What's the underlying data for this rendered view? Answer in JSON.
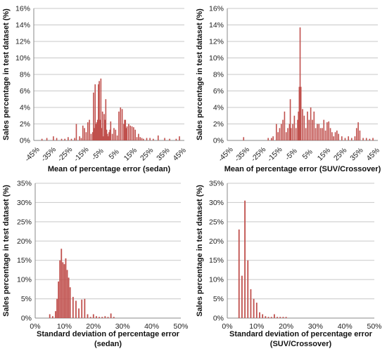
{
  "chart_data": [
    {
      "type": "bar",
      "panel": "top-left",
      "xlabel": "Mean of percentage error (sedan)",
      "xlabel2": "",
      "ylabel": "Sales percentage in test dataset (%)",
      "xlim": [
        -45,
        47
      ],
      "ylim": [
        0,
        16
      ],
      "yticks": [
        "0%",
        "2%",
        "4%",
        "6%",
        "8%",
        "10%",
        "12%",
        "14%",
        "16%"
      ],
      "yticks_values": [
        0,
        2,
        4,
        6,
        8,
        10,
        12,
        14,
        16
      ],
      "xticks": [
        "-45%",
        "-35%",
        "-25%",
        "-15%",
        "-5%",
        "5%",
        "15%",
        "25%",
        "35%",
        "45%"
      ],
      "xticks_values": [
        -45,
        -35,
        -25,
        -15,
        -5,
        5,
        15,
        25,
        35,
        45
      ],
      "xtick_rotation": -45,
      "grid": true,
      "color": "#c0504d",
      "x": [
        -40,
        -37,
        -33,
        -31,
        -28,
        -26,
        -24,
        -22,
        -20,
        -19,
        -17,
        -16,
        -15,
        -14,
        -13,
        -12,
        -11,
        -10,
        -9,
        -8.5,
        -8,
        -7.5,
        -7,
        -6.5,
        -6,
        -5.5,
        -5,
        -4.5,
        -4,
        -3.5,
        -3,
        -2.5,
        -2,
        -1.5,
        -1,
        -0.5,
        0,
        0.5,
        1,
        1.5,
        2,
        3,
        4,
        5,
        6,
        7,
        8,
        9,
        10,
        10.5,
        11,
        11.5,
        12,
        13,
        14,
        15,
        16,
        17,
        18,
        19,
        20,
        21,
        22,
        24,
        26,
        28,
        31,
        35,
        38,
        42,
        44
      ],
      "y": [
        0.2,
        0.3,
        0.5,
        0.3,
        0.2,
        0.2,
        0.4,
        0.2,
        0.3,
        2.0,
        0.5,
        0.3,
        1.8,
        1.5,
        1.0,
        2.2,
        2.5,
        0.8,
        1.0,
        5.8,
        1.5,
        6.8,
        2.0,
        2.2,
        2.5,
        6.8,
        7.2,
        2.5,
        7.5,
        1.5,
        3.5,
        0.5,
        3.2,
        2.5,
        5.0,
        1.3,
        0.8,
        0.5,
        1.0,
        1.3,
        2.3,
        0.8,
        1.5,
        1.3,
        0.6,
        3.5,
        4.0,
        3.8,
        2.0,
        2.5,
        2.5,
        1.5,
        1.7,
        2.0,
        1.8,
        1.7,
        1.6,
        1.3,
        0.4,
        0.8,
        0.4,
        0.3,
        0.2,
        0.3,
        0.3,
        0.2,
        0.6,
        0.3,
        0.2,
        0.2,
        0.5
      ]
    },
    {
      "type": "bar",
      "panel": "top-right",
      "xlabel": "Mean of percentage error (SUV/Crossover)",
      "xlabel2": "",
      "ylabel": "Sales percentage in test dataset (%)",
      "xlim": [
        -45,
        47
      ],
      "ylim": [
        0,
        16
      ],
      "yticks": [
        "0%",
        "2%",
        "4%",
        "6%",
        "8%",
        "10%",
        "12%",
        "14%",
        "16%"
      ],
      "yticks_values": [
        0,
        2,
        4,
        6,
        8,
        10,
        12,
        14,
        16
      ],
      "xticks": [
        "-45%",
        "-35%",
        "-25%",
        "-15%",
        "-5%",
        "5%",
        "15%",
        "25%",
        "35%",
        "45%"
      ],
      "xticks_values": [
        -45,
        -35,
        -25,
        -15,
        -5,
        5,
        15,
        25,
        35,
        45
      ],
      "xtick_rotation": -45,
      "grid": true,
      "color": "#c0504d",
      "x": [
        -35,
        -20,
        -18,
        -17,
        -15,
        -14,
        -13,
        -12,
        -11,
        -10,
        -9,
        -8,
        -7,
        -6.5,
        -6,
        -5,
        -4,
        -3,
        -2,
        -1.5,
        -1,
        -0.5,
        0,
        1,
        2,
        3,
        4,
        5,
        6,
        7,
        8,
        9,
        10,
        11,
        12,
        13,
        14,
        15,
        16,
        17,
        18,
        19,
        20,
        21,
        22,
        23,
        25,
        27,
        29,
        31,
        33,
        34,
        35,
        36,
        38,
        40,
        42,
        44
      ],
      "y": [
        0.4,
        0.3,
        0.3,
        0.5,
        2.0,
        1.0,
        1.5,
        2.0,
        2.5,
        3.5,
        1.0,
        1.5,
        2.0,
        5.0,
        1.5,
        2.0,
        3.0,
        1.5,
        2.5,
        3.5,
        6.5,
        13.7,
        6.5,
        3.8,
        3.0,
        1.5,
        3.5,
        2.5,
        4.0,
        2.5,
        3.5,
        1.5,
        2.0,
        2.0,
        1.5,
        1.5,
        2.5,
        1.2,
        2.2,
        2.3,
        1.5,
        1.0,
        0.5,
        1.0,
        1.2,
        0.8,
        0.5,
        0.3,
        0.5,
        0.3,
        0.5,
        1.5,
        2.2,
        1.2,
        0.3,
        0.3,
        0.2,
        0.3
      ]
    },
    {
      "type": "bar",
      "panel": "bottom-left",
      "xlabel": "Standard deviation of percentage error",
      "xlabel2": "(sedan)",
      "ylabel": "Sales percentage in test dataset (%)",
      "xlim": [
        0,
        50
      ],
      "ylim": [
        0,
        35
      ],
      "yticks": [
        "0%",
        "5%",
        "10%",
        "15%",
        "20%",
        "25%",
        "30%",
        "35%"
      ],
      "yticks_values": [
        0,
        5,
        10,
        15,
        20,
        25,
        30,
        35
      ],
      "xticks": [
        "0%",
        "10%",
        "20%",
        "30%",
        "40%",
        "50%"
      ],
      "xticks_values": [
        0,
        10,
        20,
        30,
        40,
        50
      ],
      "xtick_rotation": 0,
      "grid": true,
      "color": "#c0504d",
      "x": [
        5,
        6,
        7,
        7.5,
        8,
        8.5,
        9,
        9.5,
        10,
        10.5,
        11,
        11.5,
        12,
        13,
        14,
        15,
        16,
        17,
        18,
        19,
        20,
        21,
        22,
        23,
        24,
        25,
        26,
        27
      ],
      "y": [
        1.0,
        0.5,
        1.8,
        5.0,
        9.5,
        15.0,
        18.0,
        14.5,
        14.0,
        15.5,
        12.5,
        10.5,
        8.0,
        5.5,
        4.5,
        2.5,
        4.8,
        5.0,
        1.0,
        0.3,
        1.0,
        0.5,
        0.3,
        0.3,
        0.5,
        0.3,
        1.2,
        0.3
      ]
    },
    {
      "type": "bar",
      "panel": "bottom-right",
      "xlabel": "Standard deviation of percentage error",
      "xlabel2": "(SUV/Crossover)",
      "ylabel": "Sales percentage in test dataset (%)",
      "xlim": [
        0,
        50
      ],
      "ylim": [
        0,
        35
      ],
      "yticks": [
        "0%",
        "5%",
        "10%",
        "15%",
        "20%",
        "25%",
        "30%",
        "35%"
      ],
      "yticks_values": [
        0,
        5,
        10,
        15,
        20,
        25,
        30,
        35
      ],
      "xticks": [
        "0%",
        "10%",
        "20%",
        "30%",
        "40%",
        "50%"
      ],
      "xticks_values": [
        0,
        10,
        20,
        30,
        40,
        50
      ],
      "xtick_rotation": 0,
      "grid": true,
      "color": "#c0504d",
      "x": [
        4,
        5,
        6,
        7,
        8,
        9,
        10,
        11,
        12,
        13,
        14,
        15,
        16,
        17,
        18,
        19,
        20
      ],
      "y": [
        23.0,
        11.0,
        30.5,
        15.0,
        7.5,
        5.0,
        4.0,
        1.5,
        1.0,
        0.5,
        0.3,
        0.3,
        1.0,
        0.3,
        0.3,
        0.3,
        0.3
      ]
    }
  ]
}
